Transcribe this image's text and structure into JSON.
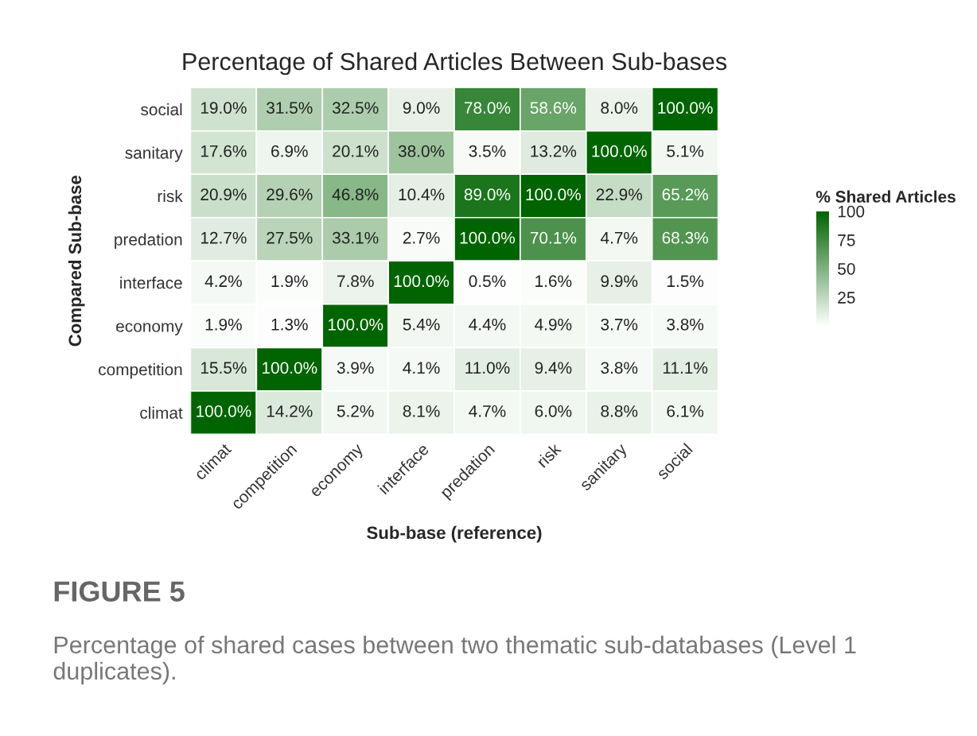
{
  "chart_data": {
    "type": "heatmap",
    "title": "Percentage of Shared Articles Between Sub-bases",
    "xlabel": "Sub-base (reference)",
    "ylabel": "Compared Sub-base",
    "clabel": "% Shared Articles",
    "categories": [
      "climat",
      "competition",
      "economy",
      "interface",
      "predation",
      "risk",
      "sanitary",
      "social"
    ],
    "y_categories": [
      "social",
      "sanitary",
      "risk",
      "predation",
      "interface",
      "economy",
      "competition",
      "climat"
    ],
    "cells": [
      [
        19.0,
        31.5,
        32.5,
        9.0,
        78.0,
        58.6,
        8.0,
        100.0
      ],
      [
        17.6,
        6.9,
        20.1,
        38.0,
        3.5,
        13.2,
        100.0,
        5.1
      ],
      [
        20.9,
        29.6,
        46.8,
        10.4,
        89.0,
        100.0,
        22.9,
        65.2
      ],
      [
        12.7,
        27.5,
        33.1,
        2.7,
        100.0,
        70.1,
        4.7,
        68.3
      ],
      [
        4.2,
        1.9,
        7.8,
        100.0,
        0.5,
        1.6,
        9.9,
        1.5
      ],
      [
        1.9,
        1.3,
        100.0,
        5.4,
        4.4,
        4.9,
        3.7,
        3.8
      ],
      [
        15.5,
        100.0,
        3.9,
        4.1,
        11.0,
        9.4,
        3.8,
        11.1
      ],
      [
        100.0,
        14.2,
        5.2,
        8.1,
        4.7,
        6.0,
        8.8,
        6.1
      ]
    ],
    "cell_labels": [
      [
        "19.0%",
        "31.5%",
        "32.5%",
        "9.0%",
        "78.0%",
        "58.6%",
        "8.0%",
        "100.0%"
      ],
      [
        "17.6%",
        "6.9%",
        "20.1%",
        "38.0%",
        "3.5%",
        "13.2%",
        "100.0%",
        "5.1%"
      ],
      [
        "20.9%",
        "29.6%",
        "46.8%",
        "10.4%",
        "89.0%",
        "100.0%",
        "22.9%",
        "65.2%"
      ],
      [
        "12.7%",
        "27.5%",
        "33.1%",
        "2.7%",
        "100.0%",
        "70.1%",
        "4.7%",
        "68.3%"
      ],
      [
        "4.2%",
        "1.9%",
        "7.8%",
        "100.0%",
        "0.5%",
        "1.6%",
        "9.9%",
        "1.5%"
      ],
      [
        "1.9%",
        "1.3%",
        "100.0%",
        "5.4%",
        "4.4%",
        "4.9%",
        "3.7%",
        "3.8%"
      ],
      [
        "15.5%",
        "100.0%",
        "3.9%",
        "4.1%",
        "11.0%",
        "9.4%",
        "3.8%",
        "11.1%"
      ],
      [
        "100.0%",
        "14.2%",
        "5.2%",
        "8.1%",
        "4.7%",
        "6.0%",
        "8.8%",
        "6.1%"
      ]
    ],
    "clim": [
      0,
      100
    ],
    "cticks": [
      25,
      50,
      75,
      100
    ],
    "colors": [
      "#ffffff",
      "#006400"
    ],
    "annotations": [
      "FIGURE 5",
      "Percentage of shared cases between two thematic sub-databases (Level 1 duplicates)."
    ]
  }
}
